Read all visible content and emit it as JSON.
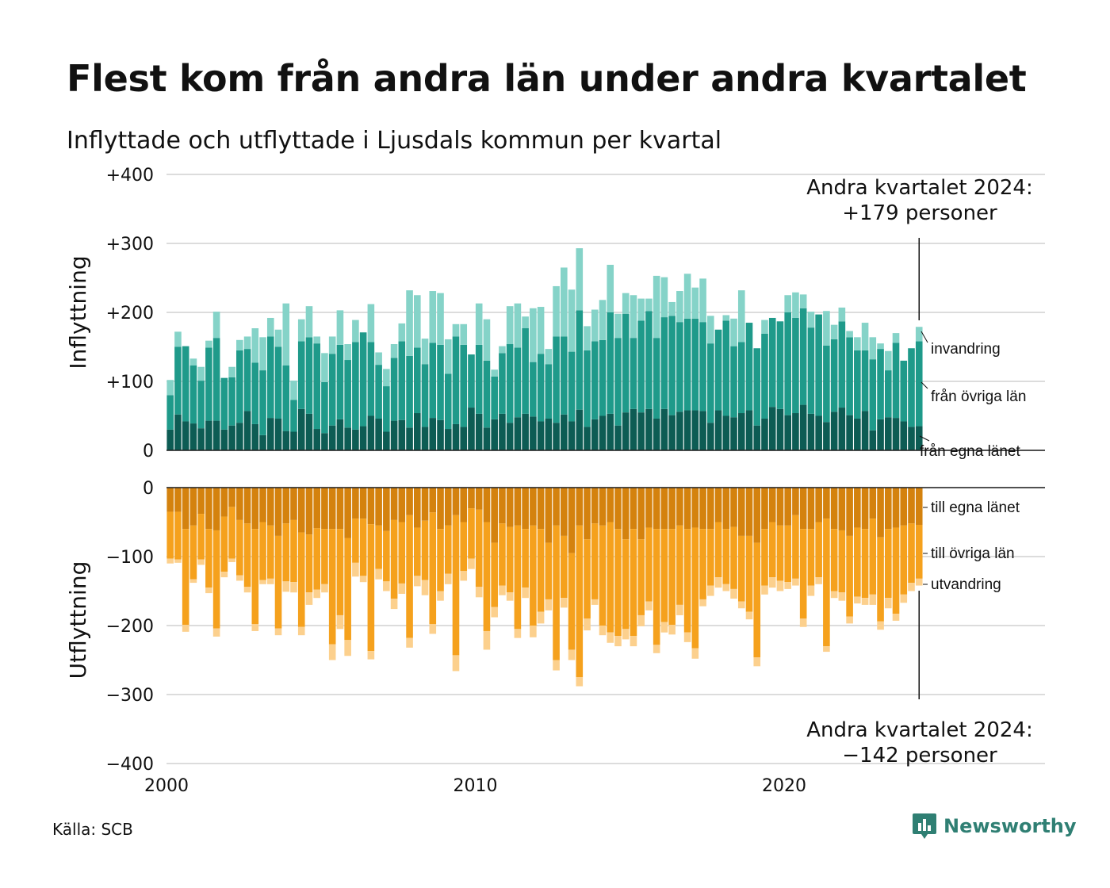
{
  "title": "Flest kom från andra län under andra kvartalet",
  "subtitle": "Inflyttade och utflyttade i Ljusdals kommun per kvartal",
  "source": "Källa: SCB",
  "brand": {
    "name": "Newsworthy",
    "icon": "newsworthy-logo-icon",
    "color": "#2f7f73"
  },
  "annotations": {
    "in_line1": "Andra kvartalet 2024:",
    "in_line2": "+179 personer",
    "out_line1": "Andra kvartalet 2024:",
    "out_line2": "−142 personer"
  },
  "chart_data": {
    "type": "bar",
    "stacked": true,
    "grid": true,
    "period": "kvartal",
    "x_start": 2000,
    "x_ticks": [
      2000,
      2010,
      2020
    ],
    "panels": [
      {
        "ylabel": "Inflyttning",
        "ylim": [
          0,
          400
        ],
        "yticks": [
          "0",
          "+100",
          "+200",
          "+300",
          "+400"
        ],
        "series": [
          {
            "name": "från egna länet",
            "color": "#0d5c54",
            "values": [
              30,
              52,
              42,
              39,
              32,
              43,
              43,
              30,
              36,
              40,
              57,
              38,
              22,
              47,
              46,
              28,
              27,
              60,
              53,
              31,
              25,
              36,
              45,
              33,
              30,
              35,
              50,
              46,
              27,
              43,
              44,
              33,
              54,
              34,
              47,
              44,
              31,
              38,
              34,
              62,
              53,
              33,
              45,
              53,
              40,
              48,
              53,
              49,
              42,
              46,
              40,
              52,
              42,
              59,
              34,
              45,
              50,
              53,
              36,
              55,
              60,
              55,
              60,
              46,
              60,
              51,
              56,
              58,
              58,
              57,
              40,
              58,
              50,
              48,
              54,
              58,
              36,
              46,
              63,
              60,
              51,
              54,
              66,
              53,
              50,
              41,
              56,
              62,
              51,
              46,
              57,
              29,
              45,
              48,
              47,
              42,
              34,
              35
            ]
          },
          {
            "name": "från övriga län",
            "color": "#1f9a8a",
            "values": [
              50,
              98,
              109,
              84,
              69,
              106,
              120,
              75,
              70,
              105,
              90,
              89,
              94,
              118,
              104,
              95,
              46,
              98,
              111,
              124,
              74,
              104,
              108,
              98,
              127,
              136,
              107,
              78,
              66,
              91,
              114,
              104,
              95,
              91,
              109,
              109,
              80,
              127,
              119,
              77,
              100,
              97,
              62,
              88,
              114,
              101,
              124,
              79,
              98,
              79,
              125,
              113,
              101,
              144,
              111,
              113,
              110,
              147,
              127,
              143,
              103,
              133,
              142,
              117,
              133,
              144,
              130,
              133,
              133,
              129,
              115,
              117,
              138,
              103,
              103,
              127,
              112,
              123,
              129,
              127,
              149,
              138,
              140,
              125,
              147,
              111,
              105,
              125,
              113,
              99,
              88,
              103,
              102,
              68,
              109,
              88,
              114,
              123
            ]
          },
          {
            "name": "invandring",
            "color": "#85d3c8",
            "values": [
              22,
              22,
              0,
              10,
              20,
              10,
              38,
              0,
              15,
              15,
              18,
              50,
              48,
              27,
              25,
              90,
              28,
              32,
              45,
              10,
              42,
              25,
              50,
              23,
              32,
              0,
              55,
              18,
              25,
              20,
              26,
              95,
              76,
              37,
              75,
              75,
              50,
              18,
              30,
              0,
              60,
              60,
              10,
              10,
              55,
              64,
              17,
              78,
              68,
              22,
              73,
              100,
              90,
              90,
              35,
              46,
              58,
              69,
              35,
              30,
              62,
              32,
              18,
              90,
              58,
              20,
              45,
              65,
              45,
              63,
              40,
              0,
              8,
              40,
              75,
              0,
              0,
              20,
              0,
              0,
              25,
              37,
              20,
              23,
              0,
              50,
              21,
              20,
              9,
              19,
              40,
              32,
              8,
              28,
              14,
              0,
              0,
              21
            ]
          }
        ]
      },
      {
        "ylabel": "Utflyttning",
        "ylim": [
          -400,
          0
        ],
        "yticks": [
          "0",
          "−100",
          "−200",
          "−300",
          "−400"
        ],
        "series": [
          {
            "name": "till egna länet",
            "color": "#d4820e",
            "values": [
              -35,
              -35,
              -60,
              -55,
              -38,
              -60,
              -62,
              -42,
              -28,
              -47,
              -52,
              -60,
              -50,
              -55,
              -70,
              -52,
              -47,
              -65,
              -68,
              -59,
              -60,
              -60,
              -60,
              -73,
              -45,
              -45,
              -53,
              -55,
              -63,
              -47,
              -50,
              -40,
              -58,
              -48,
              -36,
              -60,
              -55,
              -40,
              -50,
              -30,
              -32,
              -50,
              -80,
              -52,
              -57,
              -55,
              -60,
              -55,
              -60,
              -80,
              -55,
              -70,
              -95,
              -55,
              -75,
              -52,
              -55,
              -50,
              -60,
              -75,
              -60,
              -75,
              -58,
              -60,
              -60,
              -60,
              -55,
              -60,
              -58,
              -60,
              -60,
              -50,
              -60,
              -57,
              -70,
              -70,
              -80,
              -60,
              -50,
              -55,
              -55,
              -40,
              -60,
              -60,
              -50,
              -45,
              -60,
              -62,
              -70,
              -58,
              -60,
              -45,
              -72,
              -60,
              -58,
              -55,
              -52,
              -54
            ]
          },
          {
            "name": "till övriga län",
            "color": "#f5a11d",
            "values": [
              -68,
              -69,
              -139,
              -78,
              -66,
              -85,
              -142,
              -80,
              -75,
              -80,
              -92,
              -138,
              -84,
              -77,
              -134,
              -84,
              -90,
              -137,
              -84,
              -89,
              -80,
              -167,
              -125,
              -148,
              -64,
              -83,
              -184,
              -63,
              -73,
              -114,
              -89,
              -178,
              -70,
              -86,
              -162,
              -90,
              -70,
              -203,
              -71,
              -73,
              -112,
              -158,
              -93,
              -90,
              -95,
              -150,
              -85,
              -145,
              -120,
              -82,
              -195,
              -90,
              -140,
              -220,
              -115,
              -110,
              -145,
              -160,
              -155,
              -130,
              -155,
              -110,
              -107,
              -168,
              -135,
              -139,
              -115,
              -150,
              -175,
              -102,
              -82,
              -80,
              -80,
              -90,
              -95,
              -110,
              -166,
              -82,
              -80,
              -80,
              -82,
              -92,
              -130,
              -82,
              -80,
              -185,
              -90,
              -90,
              -117,
              -100,
              -100,
              -110,
              -122,
              -100,
              -125,
              -100,
              -86,
              -78
            ]
          },
          {
            "name": "utvandring",
            "color": "#fcd08d",
            "values": [
              -7,
              -5,
              -10,
              -5,
              -8,
              -8,
              -12,
              -8,
              -5,
              -8,
              -8,
              -10,
              -6,
              -8,
              -10,
              -15,
              -15,
              -12,
              -18,
              -12,
              -12,
              -23,
              -20,
              -23,
              -20,
              -9,
              -12,
              -15,
              -14,
              -15,
              -15,
              -14,
              -15,
              -22,
              -14,
              -14,
              -15,
              -23,
              -14,
              -15,
              -15,
              -27,
              -15,
              -14,
              -12,
              -13,
              -15,
              -17,
              -17,
              -16,
              -15,
              -14,
              -15,
              -13,
              -17,
              -8,
              -14,
              -15,
              -15,
              -15,
              -15,
              -16,
              -13,
              -12,
              -15,
              -14,
              -15,
              -14,
              -15,
              -10,
              -15,
              -15,
              -10,
              -14,
              -10,
              -11,
              -13,
              -13,
              -15,
              -15,
              -10,
              -10,
              -12,
              -15,
              -10,
              -8,
              -10,
              -12,
              -10,
              -10,
              -10,
              -15,
              -12,
              -15,
              -10,
              -12,
              -12,
              -10
            ]
          }
        ]
      }
    ]
  }
}
